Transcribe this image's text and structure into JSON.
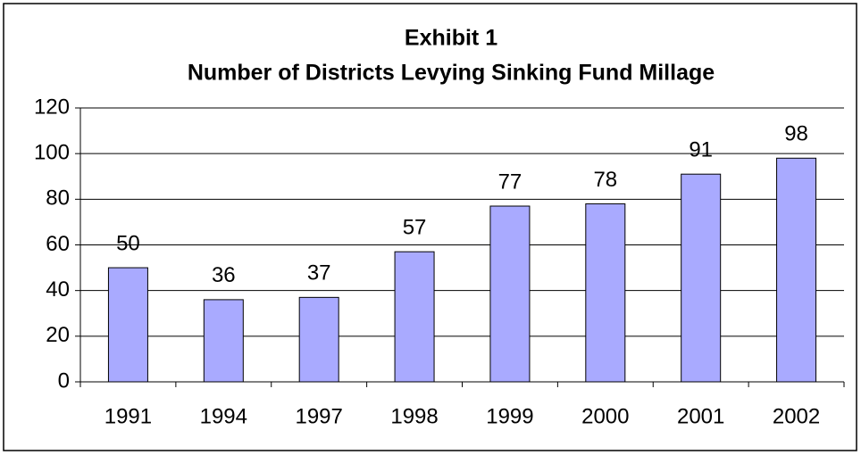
{
  "chart_data": {
    "type": "bar",
    "title": "Exhibit 1",
    "subtitle": "Number of Districts Levying Sinking Fund Millage",
    "categories": [
      "1991",
      "1994",
      "1997",
      "1998",
      "1999",
      "2000",
      "2001",
      "2002"
    ],
    "values": [
      50,
      36,
      37,
      57,
      77,
      78,
      91,
      98
    ],
    "color": "#a9aaff",
    "ylim": [
      0,
      120
    ],
    "yticks": [
      0,
      20,
      40,
      60,
      80,
      100,
      120
    ],
    "grid": true
  }
}
